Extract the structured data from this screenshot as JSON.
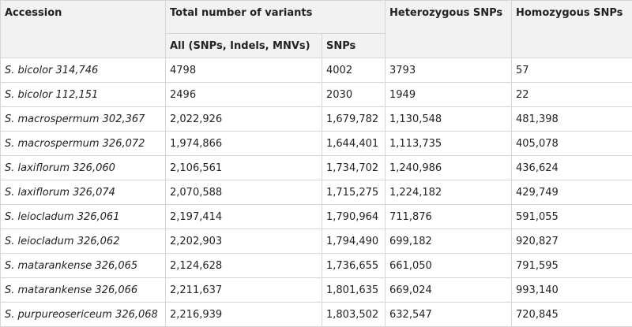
{
  "headers": {
    "accession": "Accession",
    "total_variants": "Total number of variants",
    "all": "All (SNPs, Indels, MNVs)",
    "snps": "SNPs",
    "heterozygous": "Heterozygous SNPs",
    "homozygous": "Homozygous SNPs"
  },
  "rows": [
    {
      "accession": "S. bicolor 314,746",
      "all": "4798",
      "snps": "4002",
      "het": "3793",
      "hom": "57"
    },
    {
      "accession": "S. bicolor 112,151",
      "all": "2496",
      "snps": "2030",
      "het": "1949",
      "hom": "22"
    },
    {
      "accession": "S. macrospermum 302,367",
      "all": "2,022,926",
      "snps": "1,679,782",
      "het": "1,130,548",
      "hom": "481,398"
    },
    {
      "accession": "S. macrospermum 326,072",
      "all": "1,974,866",
      "snps": "1,644,401",
      "het": "1,113,735",
      "hom": "405,078"
    },
    {
      "accession": "S. laxiflorum 326,060",
      "all": "2,106,561",
      "snps": "1,734,702",
      "het": "1,240,986",
      "hom": "436,624"
    },
    {
      "accession": "S. laxiflorum 326,074",
      "all": "2,070,588",
      "snps": "1,715,275",
      "het": "1,224,182",
      "hom": "429,749"
    },
    {
      "accession": "S. leiocladum 326,061",
      "all": "2,197,414",
      "snps": "1,790,964",
      "het": "711,876",
      "hom": "591,055"
    },
    {
      "accession": "S. leiocladum 326,062",
      "all": "2,202,903",
      "snps": "1,794,490",
      "het": "699,182",
      "hom": "920,827"
    },
    {
      "accession": "S. matarankense 326,065",
      "all": "2,124,628",
      "snps": "1,736,655",
      "het": "661,050",
      "hom": "791,595"
    },
    {
      "accession": "S. matarankense 326,066",
      "all": "2,211,637",
      "snps": "1,801,635",
      "het": "669,024",
      "hom": "993,140"
    },
    {
      "accession": "S. purpureosericeum 326,068",
      "all": "2,216,939",
      "snps": "1,803,502",
      "het": "632,547",
      "hom": "720,845"
    }
  ]
}
